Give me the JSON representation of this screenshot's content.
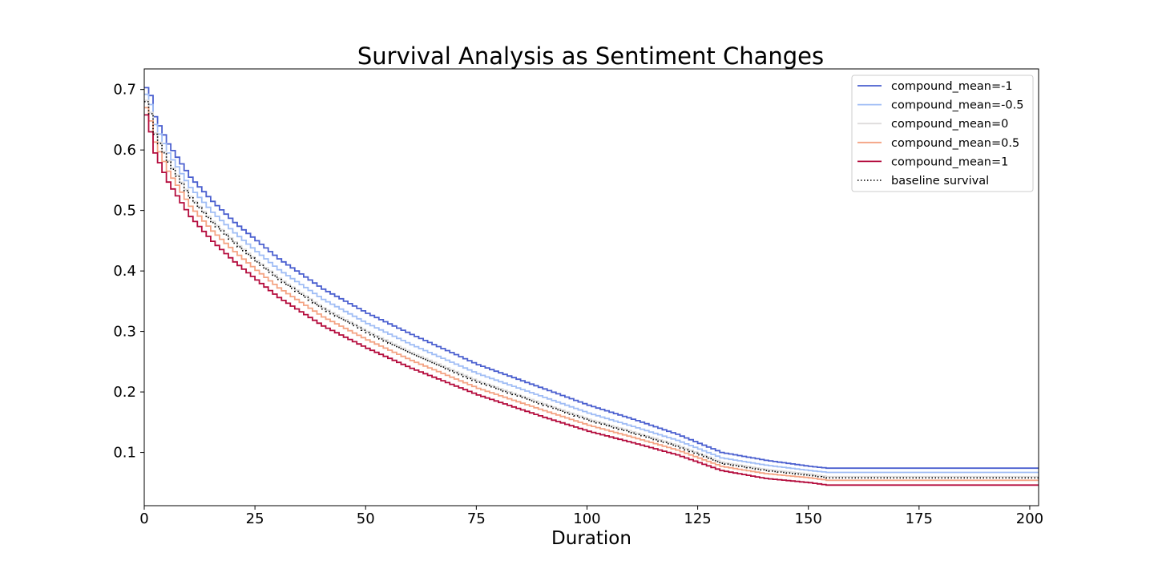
{
  "chart_data": {
    "type": "line",
    "title": "Survival Analysis as Sentiment Changes",
    "xlabel": "Duration",
    "ylabel": "",
    "xlim": [
      0,
      202
    ],
    "ylim": [
      0.012,
      0.734
    ],
    "xticks": [
      "0",
      "25",
      "50",
      "75",
      "100",
      "125",
      "150",
      "175",
      "200"
    ],
    "yticks": [
      "0.1",
      "0.2",
      "0.3",
      "0.4",
      "0.5",
      "0.6",
      "0.7"
    ],
    "grid": false,
    "legend_position": "top-right",
    "step": true,
    "x": [
      0,
      1,
      2,
      5,
      10,
      15,
      20,
      25,
      30,
      40,
      50,
      60,
      75,
      90,
      100,
      110,
      120,
      130,
      140,
      150,
      154,
      202
    ],
    "series": [
      {
        "name": "compound_mean=-1",
        "color": "#4a5fcf",
        "style": "solid",
        "values": [
          0.703,
          0.69,
          0.655,
          0.61,
          0.555,
          0.515,
          0.48,
          0.45,
          0.42,
          0.37,
          0.33,
          0.295,
          0.245,
          0.205,
          0.178,
          0.155,
          0.13,
          0.1,
          0.087,
          0.077,
          0.074,
          0.074
        ]
      },
      {
        "name": "compound_mean=-0.5",
        "color": "#a0bdf5",
        "style": "solid",
        "values": [
          0.692,
          0.675,
          0.642,
          0.595,
          0.538,
          0.497,
          0.463,
          0.432,
          0.402,
          0.353,
          0.313,
          0.278,
          0.23,
          0.191,
          0.165,
          0.143,
          0.12,
          0.091,
          0.079,
          0.07,
          0.067,
          0.067
        ]
      },
      {
        "name": "compound_mean=0",
        "color": "#dddcdc",
        "style": "solid",
        "values": [
          0.682,
          0.662,
          0.628,
          0.582,
          0.523,
          0.482,
          0.448,
          0.417,
          0.388,
          0.339,
          0.3,
          0.265,
          0.218,
          0.18,
          0.155,
          0.134,
          0.112,
          0.084,
          0.072,
          0.064,
          0.06,
          0.06
        ]
      },
      {
        "name": "compound_mean=0.5",
        "color": "#f4a383",
        "style": "solid",
        "values": [
          0.67,
          0.648,
          0.613,
          0.565,
          0.507,
          0.466,
          0.432,
          0.401,
          0.372,
          0.324,
          0.286,
          0.252,
          0.206,
          0.169,
          0.145,
          0.125,
          0.104,
          0.077,
          0.065,
          0.058,
          0.054,
          0.054
        ]
      },
      {
        "name": "compound_mean=1",
        "color": "#b40b3c",
        "style": "solid",
        "values": [
          0.658,
          0.63,
          0.595,
          0.547,
          0.49,
          0.449,
          0.415,
          0.385,
          0.356,
          0.309,
          0.272,
          0.239,
          0.195,
          0.158,
          0.135,
          0.116,
          0.096,
          0.07,
          0.057,
          0.05,
          0.046,
          0.046
        ]
      },
      {
        "name": "baseline survival",
        "color": "#000000",
        "style": "dotted",
        "values": [
          0.68,
          0.66,
          0.626,
          0.58,
          0.521,
          0.48,
          0.446,
          0.415,
          0.386,
          0.337,
          0.298,
          0.263,
          0.216,
          0.178,
          0.153,
          0.132,
          0.11,
          0.082,
          0.07,
          0.062,
          0.058,
          0.058
        ]
      }
    ]
  }
}
